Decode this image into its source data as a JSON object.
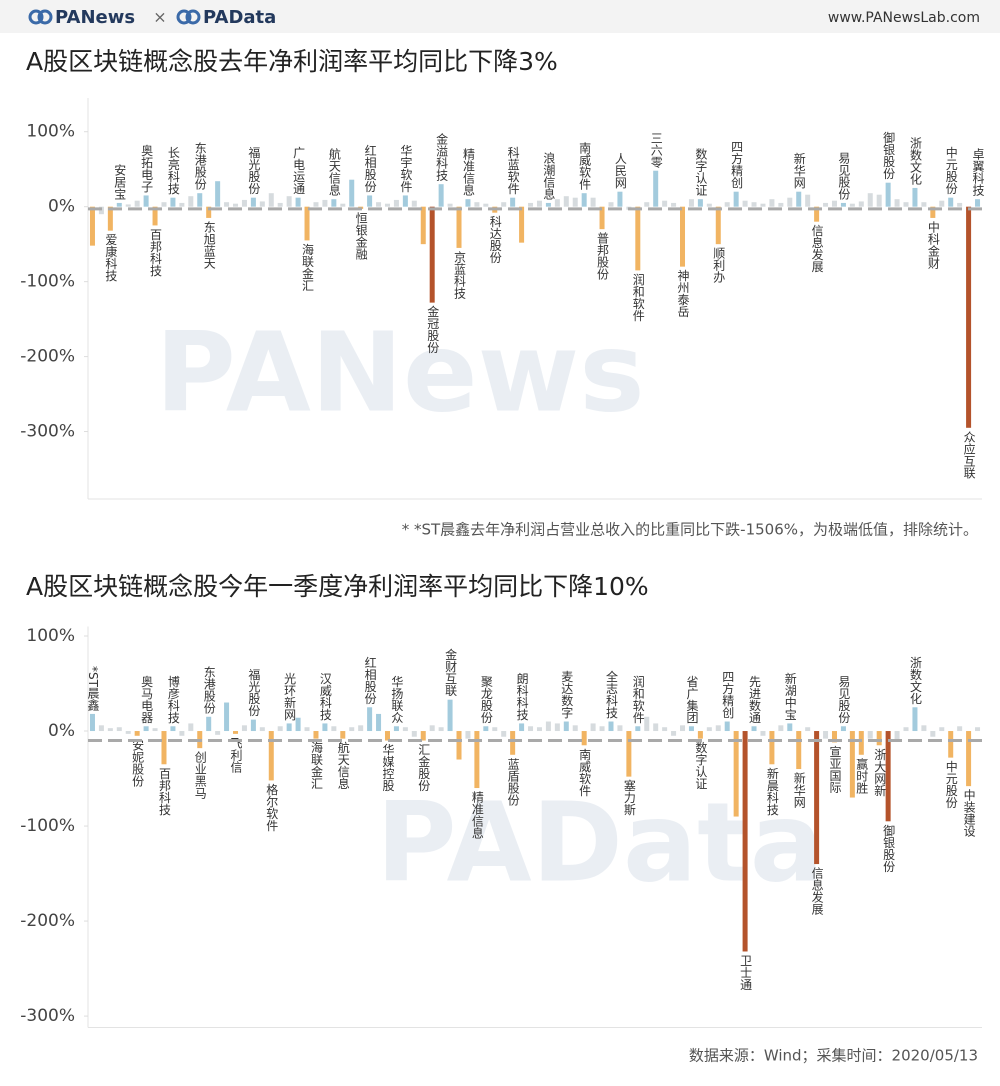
{
  "header": {
    "brand": "PANews",
    "separator": "×",
    "partner": "PAData",
    "url": "www.PANewsLab.com"
  },
  "chart_data": [
    {
      "type": "bar",
      "title": "A股区块链概念股去年净利润率平均同比下降3%",
      "watermark": "PANews",
      "categories": [
        null,
        null,
        "爱康科技",
        "安居宝",
        null,
        null,
        "奥拓电子",
        "百邦科技",
        null,
        "长亮科技",
        null,
        null,
        "东港股份",
        "东旭蓝天",
        null,
        null,
        null,
        null,
        "福光股份",
        null,
        null,
        null,
        null,
        "广电运通",
        "海联金汇",
        null,
        null,
        "航天信息",
        null,
        null,
        "恒银金融",
        "红相股份",
        null,
        null,
        null,
        "华宇软件",
        null,
        null,
        "金冠股份",
        "金溢科技",
        null,
        "京蓝科技",
        "精准信息",
        null,
        null,
        "科达股份",
        null,
        "科蓝软件",
        null,
        null,
        null,
        "浪潮信息",
        null,
        null,
        null,
        "南威软件",
        null,
        "普邦股份",
        null,
        "人民网",
        null,
        "润和软件",
        null,
        "三六零",
        null,
        null,
        "神州泰岳",
        null,
        "数字认证",
        null,
        "顺利办",
        null,
        "四方精创",
        null,
        null,
        null,
        null,
        null,
        null,
        "新华网",
        null,
        "信息发展",
        null,
        null,
        "易见股份",
        null,
        null,
        null,
        null,
        "御银股份",
        null,
        null,
        "浙数文化",
        null,
        "中科金财",
        null,
        "中元股份",
        null,
        "众应互联",
        "卓翼科技"
      ],
      "values": [
        -52,
        -10,
        -32,
        5,
        3,
        8,
        15,
        -25,
        6,
        12,
        5,
        14,
        18,
        -15,
        34,
        6,
        4,
        9,
        12,
        7,
        18,
        5,
        14,
        12,
        -45,
        6,
        9,
        10,
        4,
        36,
        -3,
        15,
        6,
        4,
        9,
        15,
        8,
        -50,
        -128,
        30,
        4,
        -55,
        10,
        6,
        4,
        -8,
        6,
        12,
        -48,
        5,
        8,
        5,
        10,
        14,
        12,
        18,
        12,
        -30,
        6,
        20,
        -4,
        -85,
        6,
        48,
        8,
        5,
        -80,
        10,
        10,
        4,
        -50,
        6,
        20,
        8,
        6,
        4,
        10,
        5,
        12,
        20,
        16,
        -20,
        5,
        8,
        5,
        4,
        7,
        18,
        16,
        32,
        10,
        6,
        25,
        6,
        -15,
        8,
        12,
        5,
        -295,
        10
      ],
      "colors": [
        "#f1b462",
        "#d6dbde",
        "#f1b462",
        "#a3cbdd",
        "#d6dbde",
        "#d6dbde",
        "#a3cbdd",
        "#f1b462",
        "#d6dbde",
        "#a3cbdd",
        "#d6dbde",
        "#d6dbde",
        "#a3cbdd",
        "#f1b462",
        "#a3cbdd",
        "#d6dbde",
        "#d6dbde",
        "#d6dbde",
        "#a3cbdd",
        "#d6dbde",
        "#d6dbde",
        "#d6dbde",
        "#d6dbde",
        "#a3cbdd",
        "#f1b462",
        "#d6dbde",
        "#d6dbde",
        "#a3cbdd",
        "#d6dbde",
        "#a3cbdd",
        "#f1b462",
        "#a3cbdd",
        "#d6dbde",
        "#d6dbde",
        "#d6dbde",
        "#a3cbdd",
        "#d6dbde",
        "#f1b462",
        "#b4532b",
        "#a3cbdd",
        "#d6dbde",
        "#f1b462",
        "#a3cbdd",
        "#d6dbde",
        "#d6dbde",
        "#f1b462",
        "#d6dbde",
        "#a3cbdd",
        "#f1b462",
        "#d6dbde",
        "#d6dbde",
        "#a3cbdd",
        "#d6dbde",
        "#d6dbde",
        "#d6dbde",
        "#a3cbdd",
        "#d6dbde",
        "#f1b462",
        "#d6dbde",
        "#a3cbdd",
        "#d6dbde",
        "#f1b462",
        "#d6dbde",
        "#a3cbdd",
        "#d6dbde",
        "#d6dbde",
        "#f1b462",
        "#d6dbde",
        "#a3cbdd",
        "#d6dbde",
        "#f1b462",
        "#d6dbde",
        "#a3cbdd",
        "#d6dbde",
        "#d6dbde",
        "#d6dbde",
        "#d6dbde",
        "#d6dbde",
        "#d6dbde",
        "#a3cbdd",
        "#d6dbde",
        "#f1b462",
        "#d6dbde",
        "#d6dbde",
        "#a3cbdd",
        "#d6dbde",
        "#d6dbde",
        "#d6dbde",
        "#d6dbde",
        "#a3cbdd",
        "#d6dbde",
        "#d6dbde",
        "#a3cbdd",
        "#d6dbde",
        "#f1b462",
        "#d6dbde",
        "#a3cbdd",
        "#d6dbde",
        "#b4532b",
        "#a3cbdd"
      ],
      "average": -3,
      "ylim": [
        -390,
        145
      ],
      "yticks": [
        {
          "value": 100,
          "label": "100%"
        },
        {
          "value": 0,
          "label": "0%"
        },
        {
          "value": -100,
          "label": "-100%"
        },
        {
          "value": -200,
          "label": "-200%"
        },
        {
          "value": -300,
          "label": "-300%"
        }
      ],
      "note": "* *ST晨鑫去年净利润占营业总收入的比重同比下跌-1506%，为极端低值，排除统计。"
    },
    {
      "type": "bar",
      "title": "A股区块链概念股今年一季度净利润率平均同比下降10%",
      "watermark": "PAData",
      "categories": [
        "*ST晨鑫",
        null,
        null,
        null,
        null,
        "安妮股份",
        "奥马电器",
        null,
        "百邦科技",
        "博彦科技",
        null,
        null,
        "创业黑马",
        "东港股份",
        null,
        null,
        "飞利信",
        null,
        "福光股份",
        null,
        "格尔软件",
        null,
        "光环新网",
        null,
        null,
        "海联金汇",
        "汉威科技",
        null,
        "航天信息",
        null,
        null,
        "红相股份",
        null,
        "华媒控股",
        "华扬联众",
        null,
        null,
        "汇金股份",
        null,
        null,
        "金财互联",
        null,
        null,
        "精准信息",
        "聚龙股份",
        null,
        null,
        "蓝盾股份",
        "朗科科技",
        null,
        null,
        null,
        null,
        "麦达数字",
        null,
        "南威软件",
        null,
        null,
        "全志科技",
        null,
        "塞力斯",
        "润和软件",
        null,
        null,
        null,
        null,
        null,
        "省广集团",
        "数字认证",
        null,
        null,
        "四方精创",
        null,
        "卫士通",
        "先进数通",
        null,
        "新晨科技",
        null,
        "新湖中宝",
        "新华网",
        null,
        "信息发展",
        null,
        "宣亚国际",
        "易见股份",
        null,
        "赢时胜",
        null,
        "浙大网新",
        "御银股份",
        null,
        null,
        "浙数文化",
        null,
        null,
        null,
        "中元股份",
        null,
        "中装建设",
        null
      ],
      "values": [
        18,
        6,
        3,
        4,
        -3,
        -5,
        5,
        3,
        -35,
        5,
        -5,
        8,
        -18,
        15,
        -4,
        30,
        -3,
        6,
        12,
        4,
        -52,
        5,
        8,
        14,
        4,
        -8,
        8,
        5,
        -8,
        4,
        6,
        25,
        18,
        -10,
        5,
        4,
        -6,
        -10,
        6,
        4,
        33,
        -30,
        -8,
        -60,
        5,
        4,
        -6,
        -25,
        8,
        5,
        4,
        10,
        8,
        10,
        6,
        -15,
        8,
        5,
        10,
        6,
        -48,
        5,
        15,
        8,
        4,
        -5,
        6,
        5,
        -8,
        4,
        6,
        10,
        -90,
        -232,
        5,
        -5,
        -35,
        6,
        8,
        -40,
        4,
        -140,
        -8,
        -12,
        5,
        -70,
        -25,
        -8,
        -15,
        -95,
        -10,
        4,
        25,
        6,
        -6,
        4,
        -28,
        5,
        -58,
        4
      ],
      "colors": [
        "#a3cbdd",
        "#d6dbde",
        "#d6dbde",
        "#d6dbde",
        "#d6dbde",
        "#f1b462",
        "#a3cbdd",
        "#d6dbde",
        "#f1b462",
        "#a3cbdd",
        "#d6dbde",
        "#d6dbde",
        "#f1b462",
        "#a3cbdd",
        "#d6dbde",
        "#a3cbdd",
        "#f1b462",
        "#d6dbde",
        "#a3cbdd",
        "#d6dbde",
        "#f1b462",
        "#d6dbde",
        "#a3cbdd",
        "#a3cbdd",
        "#d6dbde",
        "#f1b462",
        "#a3cbdd",
        "#d6dbde",
        "#f1b462",
        "#d6dbde",
        "#d6dbde",
        "#a3cbdd",
        "#a3cbdd",
        "#f1b462",
        "#a3cbdd",
        "#d6dbde",
        "#d6dbde",
        "#f1b462",
        "#d6dbde",
        "#d6dbde",
        "#a3cbdd",
        "#f1b462",
        "#d6dbde",
        "#f1b462",
        "#a3cbdd",
        "#d6dbde",
        "#d6dbde",
        "#f1b462",
        "#a3cbdd",
        "#d6dbde",
        "#d6dbde",
        "#d6dbde",
        "#d6dbde",
        "#a3cbdd",
        "#d6dbde",
        "#f1b462",
        "#d6dbde",
        "#d6dbde",
        "#a3cbdd",
        "#d6dbde",
        "#f1b462",
        "#a3cbdd",
        "#d6dbde",
        "#d6dbde",
        "#d6dbde",
        "#d6dbde",
        "#d6dbde",
        "#a3cbdd",
        "#f1b462",
        "#d6dbde",
        "#d6dbde",
        "#a3cbdd",
        "#f1b462",
        "#b4532b",
        "#a3cbdd",
        "#d6dbde",
        "#f1b462",
        "#d6dbde",
        "#a3cbdd",
        "#f1b462",
        "#d6dbde",
        "#b4532b",
        "#d6dbde",
        "#f1b462",
        "#a3cbdd",
        "#f1b462",
        "#f1b462",
        "#d6dbde",
        "#f1b462",
        "#b4532b",
        "#d6dbde",
        "#d6dbde",
        "#a3cbdd",
        "#d6dbde",
        "#d6dbde",
        "#d6dbde",
        "#f1b462",
        "#d6dbde",
        "#f1b462",
        "#d6dbde"
      ],
      "average": -10,
      "ylim": [
        -312,
        110
      ],
      "yticks": [
        {
          "value": 100,
          "label": "100%"
        },
        {
          "value": 0,
          "label": "0%"
        },
        {
          "value": -100,
          "label": "-100%"
        },
        {
          "value": -200,
          "label": "-200%"
        },
        {
          "value": -300,
          "label": "-300%"
        }
      ],
      "note": "数据来源：Wind；采集时间：2020/05/13"
    }
  ]
}
